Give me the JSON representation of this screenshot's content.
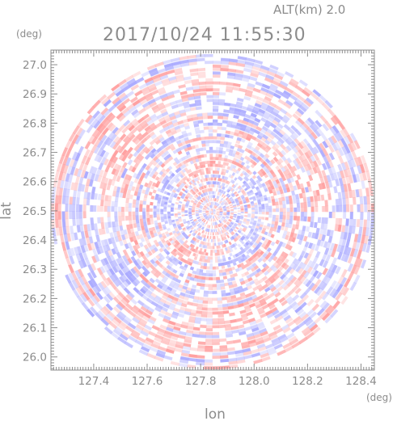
{
  "chart_data": {
    "type": "heatmap",
    "title": "2017/10/24 11:55:30",
    "altitude_label": "ALT(km) 2.0",
    "xlabel": "lon",
    "ylabel": "lat",
    "x_unit": "(deg)",
    "y_unit": "(deg)",
    "xlim": [
      127.24,
      128.45
    ],
    "ylim": [
      25.955,
      27.05
    ],
    "x_ticks": [
      127.4,
      127.6,
      127.8,
      128.0,
      128.2,
      128.4
    ],
    "x_tick_labels": [
      "127.4",
      "127.6",
      "127.8",
      "128.0",
      "128.2",
      "128.4"
    ],
    "y_ticks": [
      26.0,
      26.1,
      26.2,
      26.3,
      26.4,
      26.5,
      26.6,
      26.7,
      26.8,
      26.9,
      27.0
    ],
    "y_tick_labels": [
      "26.0",
      "26.1",
      "26.2",
      "26.3",
      "26.4",
      "26.5",
      "26.6",
      "26.7",
      "26.8",
      "26.9",
      "27.0"
    ],
    "field": {
      "shape": "circle",
      "center": [
        127.845,
        26.497
      ],
      "radius_lon": 0.605,
      "radius_lat": 0.54,
      "colors": {
        "positive": "#ff9c9c",
        "negative": "#a8a8ff",
        "neutral": "#ffffff"
      }
    },
    "grid": false,
    "legend": "none"
  }
}
